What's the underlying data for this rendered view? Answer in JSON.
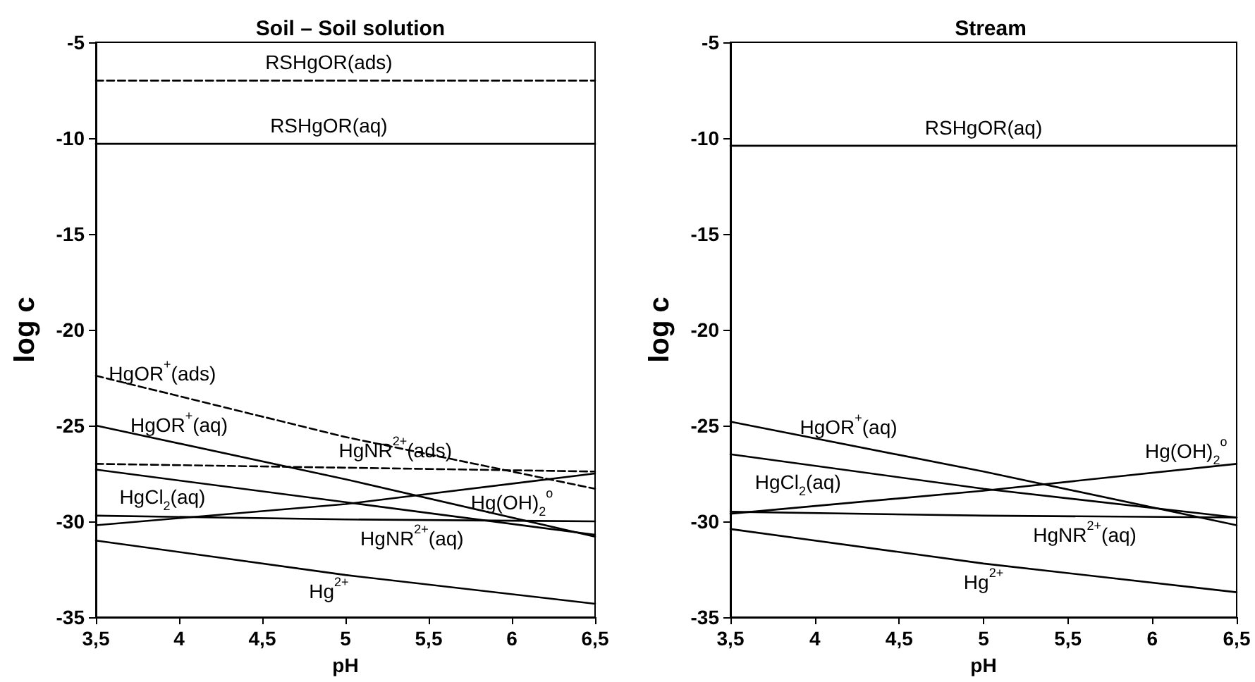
{
  "chart_data": [
    {
      "type": "line",
      "title": "Soil – Soil solution",
      "xlabel": "pH",
      "ylabel": "log c",
      "marker": "none",
      "x": [
        3.5,
        5,
        6.5
      ],
      "xlim": [
        3.5,
        6.5
      ],
      "xticks": [
        {
          "value": 3.5,
          "label": "3,5"
        },
        4,
        {
          "value": 4.5,
          "label": "4,5"
        },
        5,
        {
          "value": 5.5,
          "label": "5,5"
        },
        6,
        {
          "value": 6.5,
          "label": "6,5"
        }
      ],
      "ylim": [
        -35,
        -5
      ],
      "yticks": [
        -35,
        -30,
        -25,
        -20,
        -15,
        -10,
        -5
      ],
      "series": [
        {
          "name": "RSHgOR(ads)",
          "color": "#000000",
          "line_style": "dashed",
          "values": [
            -7,
            -7,
            -7
          ]
        },
        {
          "name": "RSHgOR(aq)",
          "color": "#000000",
          "line_style": "solid",
          "values": [
            -10.3,
            -10.3,
            -10.3
          ]
        },
        {
          "name": "HgOR$^{+}$(ads)",
          "color": "#000000",
          "line_style": "dashed",
          "values": [
            -22.4,
            -25.6,
            -28.3
          ]
        },
        {
          "name": "HgOR$^{+}$(aq)",
          "color": "#000000",
          "line_style": "solid",
          "values": [
            -25,
            -27.8,
            -30.8
          ]
        },
        {
          "name": "HgNR$^{2+}$(ads)",
          "color": "#000000",
          "line_style": "dashed",
          "values": [
            -27,
            -27.2,
            -27.4
          ]
        },
        {
          "name": "HgCl$_{2}$(aq)",
          "color": "#000000",
          "line_style": "solid",
          "values": [
            -27.3,
            -29,
            -30.7
          ]
        },
        {
          "name": "Hg(OH)$_{2}$$^{o}$",
          "color": "#000000",
          "line_style": "solid",
          "values": [
            -30.2,
            -29.1,
            -27.5
          ]
        },
        {
          "name": "HgNR$^{2+}$(aq)",
          "color": "#000000",
          "line_style": "solid",
          "values": [
            -29.7,
            -29.9,
            -30
          ]
        },
        {
          "name": "Hg$^{2+}$",
          "color": "#000000",
          "line_style": "solid",
          "values": [
            -31,
            -32.8,
            -34.3
          ]
        }
      ]
    },
    {
      "type": "line",
      "title": "Stream",
      "xlabel": "pH",
      "ylabel": "log c",
      "marker": "none",
      "x": [
        3.5,
        5,
        6.5
      ],
      "xlim": [
        3.5,
        6.5
      ],
      "xticks": [
        {
          "value": 3.5,
          "label": "3,5"
        },
        4,
        {
          "value": 4.5,
          "label": "4,5"
        },
        5,
        {
          "value": 5.5,
          "label": "5,5"
        },
        6,
        {
          "value": 6.5,
          "label": "6,5"
        }
      ],
      "ylim": [
        -35,
        -5
      ],
      "yticks": [
        -35,
        -30,
        -25,
        -20,
        -15,
        -10,
        -5
      ],
      "series": [
        {
          "name": "RSHgOR(aq)",
          "color": "#000000",
          "line_style": "solid",
          "values": [
            -10.4,
            -10.4,
            -10.4
          ]
        },
        {
          "name": "HgOR$^{+}$(aq)",
          "color": "#000000",
          "line_style": "solid",
          "values": [
            -24.8,
            -27.4,
            -30.2
          ]
        },
        {
          "name": "HgCl$_{2}$(aq)",
          "color": "#000000",
          "line_style": "solid",
          "values": [
            -26.5,
            -28.3,
            -29.8
          ]
        },
        {
          "name": "Hg(OH)$_{2}$$^{o}$",
          "color": "#000000",
          "line_style": "solid",
          "values": [
            -29.6,
            -28.4,
            -27
          ]
        },
        {
          "name": "HgNR$^{2+}$(aq)",
          "color": "#000000",
          "line_style": "solid",
          "values": [
            -29.5,
            -29.7,
            -29.8
          ]
        },
        {
          "name": "Hg$^{2+}$",
          "color": "#000000",
          "line_style": "solid",
          "values": [
            -30.4,
            -32.2,
            -33.7
          ]
        }
      ]
    }
  ]
}
